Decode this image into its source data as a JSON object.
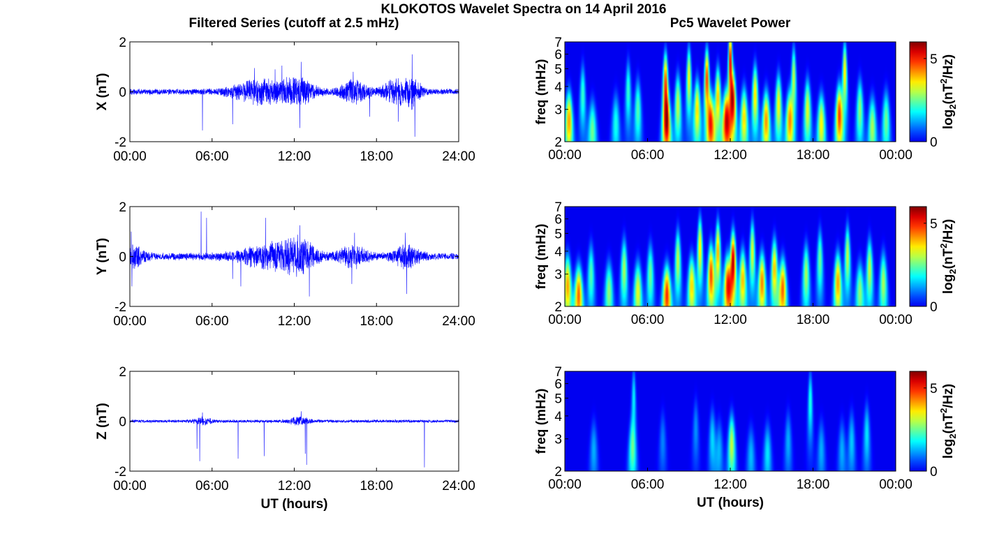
{
  "figure": {
    "suptitle": "KLOKOTOS Wavelet Spectra on 14 April 2016",
    "left_column_title": "Filtered Series (cutoff at 2.5 mHz)",
    "right_column_title": "Pc5 Wavelet Power",
    "shared_xlabel": "UT (hours)"
  },
  "chart_data": [
    {
      "type": "line",
      "component": "X",
      "ylabel": "X (nT)",
      "xlabel": "",
      "xlim_hours": [
        0,
        24
      ],
      "ylim": [
        -2,
        2
      ],
      "x_ticks": [
        "00:00",
        "06:00",
        "12:00",
        "18:00",
        "24:00"
      ],
      "y_ticks": [
        "-2",
        "0",
        "2"
      ],
      "series_color": "#0000ff",
      "noise_amplitude": 0.1,
      "spikes": [
        {
          "t": 5.3,
          "v": -1.55
        },
        {
          "t": 7.5,
          "v": -1.3
        },
        {
          "t": 9.1,
          "v": 0.95
        },
        {
          "t": 10.6,
          "v": 0.9
        },
        {
          "t": 11.1,
          "v": 1.05
        },
        {
          "t": 12.4,
          "v": -1.45
        },
        {
          "t": 12.5,
          "v": 1.2
        },
        {
          "t": 16.3,
          "v": 0.8
        },
        {
          "t": 17.5,
          "v": -1.0
        },
        {
          "t": 19.6,
          "v": -1.2
        },
        {
          "t": 20.6,
          "v": 1.5
        },
        {
          "t": 20.8,
          "v": -1.8
        }
      ],
      "activity": [
        {
          "t": 9.5,
          "width": 2.0,
          "amp": 0.35
        },
        {
          "t": 12.3,
          "width": 1.2,
          "amp": 0.4
        },
        {
          "t": 16.4,
          "width": 1.0,
          "amp": 0.35
        },
        {
          "t": 19.4,
          "width": 1.0,
          "amp": 0.35
        },
        {
          "t": 20.7,
          "width": 0.6,
          "amp": 0.4
        }
      ]
    },
    {
      "type": "line",
      "component": "Y",
      "ylabel": "Y (nT)",
      "xlabel": "",
      "xlim_hours": [
        0,
        24
      ],
      "ylim": [
        -2,
        2
      ],
      "x_ticks": [
        "00:00",
        "06:00",
        "12:00",
        "18:00",
        "24:00"
      ],
      "y_ticks": [
        "-2",
        "0",
        "2"
      ],
      "series_color": "#0000ff",
      "noise_amplitude": 0.12,
      "spikes": [
        {
          "t": 0.1,
          "v": 1.0
        },
        {
          "t": 0.15,
          "v": -1.2
        },
        {
          "t": 5.2,
          "v": 1.8
        },
        {
          "t": 5.6,
          "v": 1.55
        },
        {
          "t": 7.5,
          "v": -0.9
        },
        {
          "t": 8.1,
          "v": -1.2
        },
        {
          "t": 9.9,
          "v": 1.55
        },
        {
          "t": 12.4,
          "v": 1.25
        },
        {
          "t": 13.1,
          "v": -1.6
        },
        {
          "t": 16.4,
          "v": 0.95
        },
        {
          "t": 16.2,
          "v": -1.1
        },
        {
          "t": 20.1,
          "v": 0.95
        },
        {
          "t": 20.2,
          "v": -1.5
        }
      ],
      "activity": [
        {
          "t": 0.3,
          "width": 0.8,
          "amp": 0.3
        },
        {
          "t": 10.5,
          "width": 2.5,
          "amp": 0.35
        },
        {
          "t": 12.4,
          "width": 1.2,
          "amp": 0.35
        },
        {
          "t": 16.3,
          "width": 1.0,
          "amp": 0.3
        },
        {
          "t": 20.2,
          "width": 1.0,
          "amp": 0.3
        }
      ]
    },
    {
      "type": "line",
      "component": "Z",
      "ylabel": "Z (nT)",
      "xlabel": "UT (hours)",
      "xlim_hours": [
        0,
        24
      ],
      "ylim": [
        -2,
        2
      ],
      "x_ticks": [
        "00:00",
        "06:00",
        "12:00",
        "18:00",
        "24:00"
      ],
      "y_ticks": [
        "-2",
        "0",
        "2"
      ],
      "series_color": "#0000ff",
      "noise_amplitude": 0.05,
      "spikes": [
        {
          "t": 4.9,
          "v": -1.1
        },
        {
          "t": 5.1,
          "v": -1.6
        },
        {
          "t": 5.3,
          "v": 0.35
        },
        {
          "t": 7.9,
          "v": -1.5
        },
        {
          "t": 9.8,
          "v": -1.4
        },
        {
          "t": 12.5,
          "v": 0.4
        },
        {
          "t": 12.8,
          "v": -1.3
        },
        {
          "t": 12.9,
          "v": -1.75
        },
        {
          "t": 21.5,
          "v": -1.85
        }
      ],
      "activity": [
        {
          "t": 5.3,
          "width": 0.6,
          "amp": 0.12
        },
        {
          "t": 12.4,
          "width": 0.8,
          "amp": 0.12
        }
      ]
    },
    {
      "type": "heatmap",
      "component": "X",
      "ylabel": "freq (mHz)",
      "xlabel": "",
      "xlim_hours": [
        0,
        24
      ],
      "ylim_mHz": [
        2,
        7
      ],
      "y_scale": "log",
      "x_ticks": [
        "00:00",
        "06:00",
        "12:00",
        "18:00",
        "00:00"
      ],
      "y_ticks": [
        "2",
        "3",
        "4",
        "5",
        "6",
        "7"
      ],
      "colormap": "jet",
      "colorbar_label": "log2(nT^2/Hz)",
      "colorbar_ticks": [
        "0",
        "5"
      ],
      "clim": [
        0,
        6
      ],
      "blobs": [
        {
          "t": 0.3,
          "f": 2.6,
          "amp": 4.2
        },
        {
          "t": 1.3,
          "f": 3.6,
          "amp": 2.2
        },
        {
          "t": 2.0,
          "f": 2.3,
          "amp": 2.6
        },
        {
          "t": 3.7,
          "f": 2.5,
          "amp": 2.0
        },
        {
          "t": 4.6,
          "f": 3.8,
          "amp": 2.2
        },
        {
          "t": 5.3,
          "f": 3.0,
          "amp": 2.4
        },
        {
          "t": 7.3,
          "f": 4.2,
          "amp": 4.8
        },
        {
          "t": 7.4,
          "f": 2.5,
          "amp": 4.5
        },
        {
          "t": 8.2,
          "f": 3.2,
          "amp": 3.2
        },
        {
          "t": 9.0,
          "f": 4.5,
          "amp": 3.6
        },
        {
          "t": 9.6,
          "f": 3.0,
          "amp": 3.8
        },
        {
          "t": 10.3,
          "f": 4.4,
          "amp": 5.0
        },
        {
          "t": 10.6,
          "f": 2.5,
          "amp": 4.6
        },
        {
          "t": 11.1,
          "f": 3.5,
          "amp": 4.0
        },
        {
          "t": 11.7,
          "f": 2.6,
          "amp": 5.2
        },
        {
          "t": 12.0,
          "f": 5.5,
          "amp": 5.6
        },
        {
          "t": 12.2,
          "f": 3.3,
          "amp": 4.8
        },
        {
          "t": 13.0,
          "f": 2.7,
          "amp": 3.8
        },
        {
          "t": 13.8,
          "f": 3.6,
          "amp": 3.8
        },
        {
          "t": 14.6,
          "f": 2.6,
          "amp": 4.3
        },
        {
          "t": 15.5,
          "f": 3.2,
          "amp": 3.6
        },
        {
          "t": 16.3,
          "f": 2.6,
          "amp": 4.0
        },
        {
          "t": 16.6,
          "f": 4.5,
          "amp": 3.2
        },
        {
          "t": 17.6,
          "f": 3.0,
          "amp": 3.4
        },
        {
          "t": 18.6,
          "f": 2.5,
          "amp": 3.6
        },
        {
          "t": 19.9,
          "f": 2.8,
          "amp": 4.8
        },
        {
          "t": 20.3,
          "f": 4.8,
          "amp": 3.8
        },
        {
          "t": 21.4,
          "f": 3.0,
          "amp": 2.8
        },
        {
          "t": 22.3,
          "f": 2.4,
          "amp": 3.0
        },
        {
          "t": 23.3,
          "f": 2.6,
          "amp": 2.6
        }
      ]
    },
    {
      "type": "heatmap",
      "component": "Y",
      "ylabel": "freq (mHz)",
      "xlabel": "",
      "xlim_hours": [
        0,
        24
      ],
      "ylim_mHz": [
        2,
        7
      ],
      "y_scale": "log",
      "x_ticks": [
        "00:00",
        "06:00",
        "12:00",
        "18:00",
        "00:00"
      ],
      "y_ticks": [
        "2",
        "3",
        "4",
        "5",
        "6",
        "7"
      ],
      "colormap": "jet",
      "colorbar_label": "log2(nT^2/Hz)",
      "colorbar_ticks": [
        "0",
        "5"
      ],
      "clim": [
        0,
        6
      ],
      "blobs": [
        {
          "t": 0.2,
          "f": 2.6,
          "amp": 4.2
        },
        {
          "t": 1.0,
          "f": 2.3,
          "amp": 4.6
        },
        {
          "t": 1.9,
          "f": 3.0,
          "amp": 2.4
        },
        {
          "t": 3.2,
          "f": 2.4,
          "amp": 2.8
        },
        {
          "t": 4.3,
          "f": 3.2,
          "amp": 3.0
        },
        {
          "t": 5.3,
          "f": 2.4,
          "amp": 3.4
        },
        {
          "t": 6.2,
          "f": 3.0,
          "amp": 2.6
        },
        {
          "t": 7.4,
          "f": 2.3,
          "amp": 5.0
        },
        {
          "t": 8.2,
          "f": 3.6,
          "amp": 3.2
        },
        {
          "t": 9.2,
          "f": 2.6,
          "amp": 3.8
        },
        {
          "t": 9.8,
          "f": 4.2,
          "amp": 3.8
        },
        {
          "t": 10.6,
          "f": 3.0,
          "amp": 4.8
        },
        {
          "t": 11.1,
          "f": 4.0,
          "amp": 4.2
        },
        {
          "t": 11.8,
          "f": 2.6,
          "amp": 4.8
        },
        {
          "t": 12.2,
          "f": 3.5,
          "amp": 5.8
        },
        {
          "t": 12.9,
          "f": 2.8,
          "amp": 4.0
        },
        {
          "t": 13.6,
          "f": 4.0,
          "amp": 3.4
        },
        {
          "t": 14.3,
          "f": 2.7,
          "amp": 4.4
        },
        {
          "t": 15.2,
          "f": 3.2,
          "amp": 4.0
        },
        {
          "t": 15.8,
          "f": 2.5,
          "amp": 4.6
        },
        {
          "t": 17.5,
          "f": 3.0,
          "amp": 3.0
        },
        {
          "t": 18.5,
          "f": 3.6,
          "amp": 2.6
        },
        {
          "t": 19.8,
          "f": 2.7,
          "amp": 4.2
        },
        {
          "t": 20.5,
          "f": 3.8,
          "amp": 3.2
        },
        {
          "t": 21.4,
          "f": 2.4,
          "amp": 2.8
        },
        {
          "t": 22.1,
          "f": 3.2,
          "amp": 3.2
        },
        {
          "t": 23.1,
          "f": 2.7,
          "amp": 3.0
        }
      ]
    },
    {
      "type": "heatmap",
      "component": "Z",
      "ylabel": "freq (mHz)",
      "xlabel": "UT (hours)",
      "xlim_hours": [
        0,
        24
      ],
      "ylim_mHz": [
        2,
        7
      ],
      "y_scale": "log",
      "x_ticks": [
        "00:00",
        "06:00",
        "12:00",
        "18:00",
        "00:00"
      ],
      "y_ticks": [
        "2",
        "3",
        "4",
        "5",
        "6",
        "7"
      ],
      "colormap": "jet",
      "colorbar_label": "log2(nT^2/Hz)",
      "colorbar_ticks": [
        "0",
        "5"
      ],
      "clim": [
        0,
        6
      ],
      "blobs": [
        {
          "t": 2.1,
          "f": 2.6,
          "amp": 1.3
        },
        {
          "t": 4.9,
          "f": 2.6,
          "amp": 2.2
        },
        {
          "t": 5.0,
          "f": 5.0,
          "amp": 1.8
        },
        {
          "t": 7.1,
          "f": 2.9,
          "amp": 1.0
        },
        {
          "t": 9.5,
          "f": 3.4,
          "amp": 1.1
        },
        {
          "t": 10.7,
          "f": 3.0,
          "amp": 1.6
        },
        {
          "t": 11.2,
          "f": 2.6,
          "amp": 1.3
        },
        {
          "t": 12.1,
          "f": 2.8,
          "amp": 3.2
        },
        {
          "t": 13.5,
          "f": 2.4,
          "amp": 1.4
        },
        {
          "t": 14.7,
          "f": 2.5,
          "amp": 1.7
        },
        {
          "t": 16.2,
          "f": 2.9,
          "amp": 1.3
        },
        {
          "t": 17.8,
          "f": 4.8,
          "amp": 2.1
        },
        {
          "t": 18.6,
          "f": 2.6,
          "amp": 1.3
        },
        {
          "t": 20.1,
          "f": 2.6,
          "amp": 1.3
        },
        {
          "t": 20.8,
          "f": 2.9,
          "amp": 1.5
        },
        {
          "t": 21.9,
          "f": 3.2,
          "amp": 1.7
        }
      ]
    }
  ]
}
